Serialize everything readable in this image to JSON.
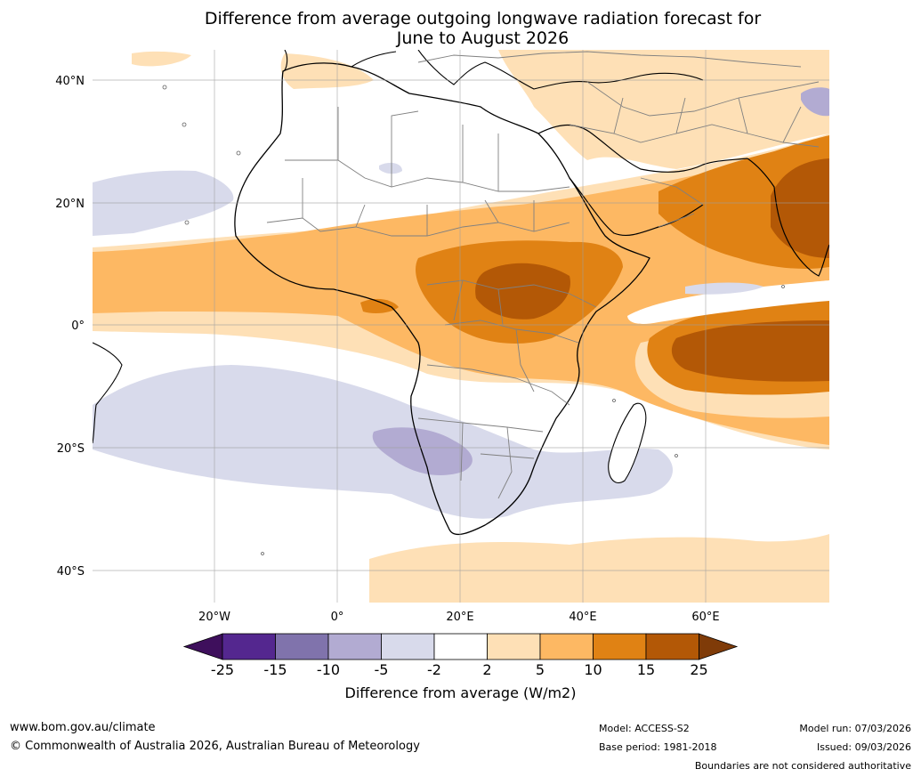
{
  "title": {
    "line1": "Difference from average outgoing longwave radiation forecast for",
    "line2": "June to August 2026"
  },
  "map": {
    "lat_labels": [
      "40°N",
      "20°N",
      "0°",
      "20°S",
      "40°S"
    ],
    "lon_labels": [
      "20°W",
      "0°",
      "20°E",
      "40°E",
      "60°E"
    ]
  },
  "legend": {
    "ticks": [
      "-25",
      "-15",
      "-10",
      "-5",
      "-2",
      "2",
      "5",
      "10",
      "15",
      "25"
    ],
    "colors": [
      "#3e0f5c",
      "#54278f",
      "#8073ac",
      "#b2abd2",
      "#d8daeb",
      "#ffffff",
      "#fee0b6",
      "#fdb863",
      "#e08214",
      "#b35806",
      "#7f3b08"
    ],
    "title": "Difference from average (W/m2)"
  },
  "footer": {
    "website": "www.bom.gov.au/climate",
    "copyright": "© Commonwealth of Australia 2026, Australian Bureau of Meteorology",
    "model": "Model: ACCESS-S2",
    "base_period": "Base period: 1981-2018",
    "model_run": "Model run: 07/03/2026",
    "issued": "Issued: 09/03/2026",
    "disclaimer": "Boundaries are not considered authoritative"
  }
}
